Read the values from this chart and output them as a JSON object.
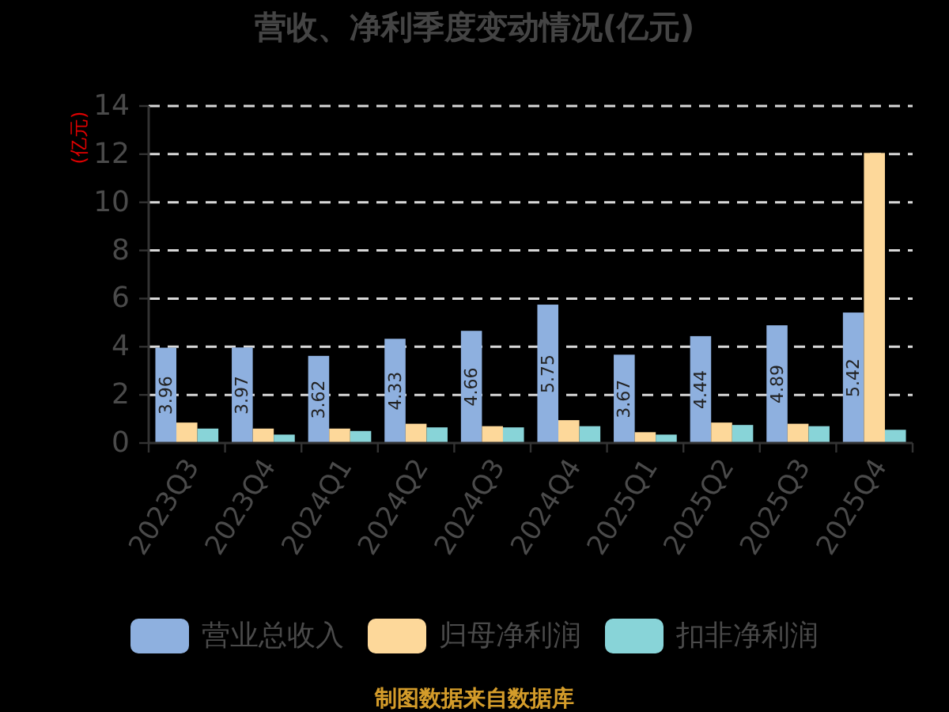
{
  "chart_data": {
    "type": "bar",
    "title": "营收、净利季度变动情况(亿元)",
    "ylabel": "(亿元)",
    "categories": [
      "2023Q3",
      "2023Q4",
      "2024Q1",
      "2024Q2",
      "2024Q3",
      "2024Q4",
      "2025Q1",
      "2025Q2",
      "2025Q3",
      "2025Q4"
    ],
    "series": [
      {
        "name": "营业总收入",
        "color": "#8eb0df",
        "values": [
          3.96,
          3.97,
          3.62,
          4.33,
          4.66,
          5.75,
          3.67,
          4.44,
          4.89,
          5.42
        ],
        "value_labels": [
          "3.96",
          "3.97",
          "3.62",
          "4.33",
          "4.66",
          "5.75",
          "3.67",
          "4.44",
          "4.89",
          "5.42"
        ]
      },
      {
        "name": "归母净利润",
        "color": "#fdd89a",
        "values": [
          0.85,
          0.6,
          0.6,
          0.8,
          0.7,
          0.95,
          0.45,
          0.85,
          0.8,
          12.05
        ]
      },
      {
        "name": "扣非净利润",
        "color": "#88d4d8",
        "values": [
          0.6,
          0.35,
          0.5,
          0.65,
          0.65,
          0.7,
          0.35,
          0.75,
          0.7,
          0.55
        ]
      }
    ],
    "ylim": [
      0,
      14
    ],
    "yticks": [
      0,
      2,
      4,
      6,
      8,
      10,
      12,
      14
    ],
    "grid": "y",
    "legend": "bottom",
    "annotations": [
      "制图数据来自数据库"
    ]
  }
}
